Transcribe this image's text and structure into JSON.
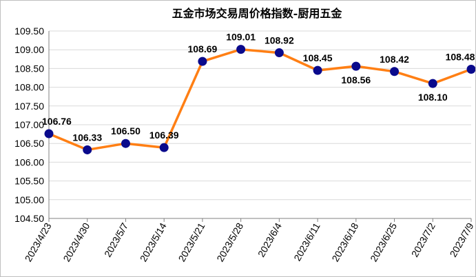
{
  "chart_data": {
    "type": "line",
    "title": "五金市场交易周价格指数-厨用五金",
    "categories": [
      "2023/4/23",
      "2023/4/30",
      "2023/5/7",
      "2023/5/14",
      "2023/5/21",
      "2023/5/28",
      "2023/6/4",
      "2023/6/11",
      "2023/6/18",
      "2023/6/25",
      "2023/7/2",
      "2023/7/9"
    ],
    "values": [
      106.76,
      106.33,
      106.5,
      106.39,
      108.69,
      109.01,
      108.92,
      108.45,
      108.56,
      108.42,
      108.1,
      108.48
    ],
    "value_labels": [
      "106.76",
      "106.33",
      "106.50",
      "106.39",
      "108.69",
      "109.01",
      "108.92",
      "108.45",
      "108.56",
      "108.42",
      "108.10",
      "108.48"
    ],
    "ylim": [
      104.5,
      109.5
    ],
    "yticks": [
      "104.50",
      "105.00",
      "105.50",
      "106.00",
      "106.50",
      "107.00",
      "107.50",
      "108.00",
      "108.50",
      "109.00",
      "109.50"
    ],
    "grid": true,
    "legend": "none",
    "colors": {
      "line": "#FF7F14",
      "marker": "#0A0A8C",
      "grid": "#D9D9D9",
      "axis": "#808080"
    }
  }
}
